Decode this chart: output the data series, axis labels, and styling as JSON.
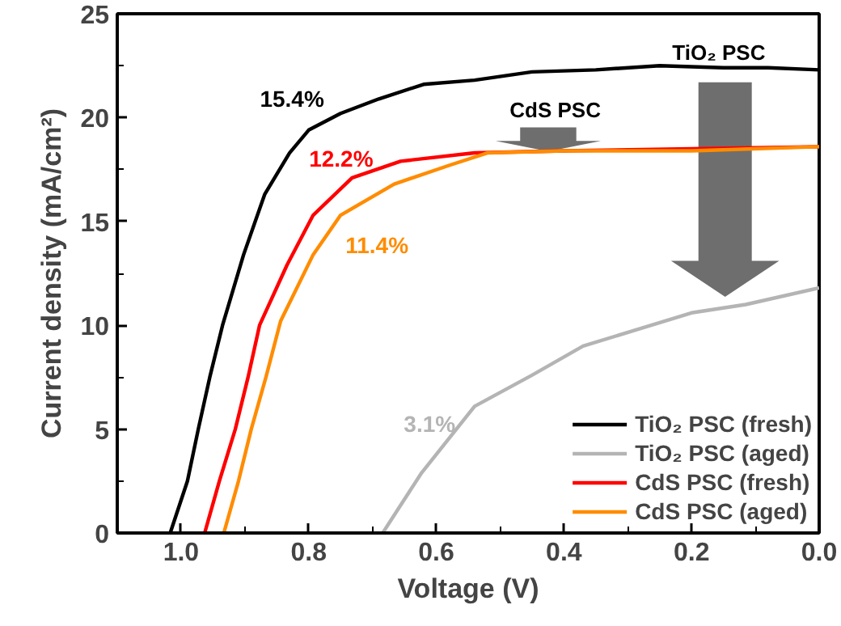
{
  "chart_data": {
    "type": "line",
    "xlabel": "Voltage (V)",
    "ylabel": "Current density (mA/cm²)",
    "xlim": [
      1.1,
      0.0
    ],
    "ylim": [
      0,
      25
    ],
    "xticks": [
      {
        "value": 1.0,
        "label": "1.0"
      },
      {
        "value": 0.8,
        "label": "0.8"
      },
      {
        "value": 0.6,
        "label": "0.6"
      },
      {
        "value": 0.4,
        "label": "0.4"
      },
      {
        "value": 0.2,
        "label": "0.2"
      },
      {
        "value": 0.0,
        "label": "0.0"
      },
      {
        "value": 0.9,
        "label": null
      },
      {
        "value": 0.7,
        "label": null
      },
      {
        "value": 0.5,
        "label": null
      },
      {
        "value": 0.3,
        "label": null
      },
      {
        "value": 0.1,
        "label": null
      }
    ],
    "yticks": [
      0,
      5,
      10,
      15,
      20,
      25,
      {
        "value": 2.5,
        "label": null
      },
      {
        "value": 7.5,
        "label": null
      },
      {
        "value": 12.5,
        "label": null
      },
      {
        "value": 17.5,
        "label": null
      },
      {
        "value": 22.5,
        "label": null
      }
    ],
    "grid": false,
    "legend": "bottom right",
    "line_style": "solid",
    "marker": "none",
    "series": [
      {
        "name": "TiO₂ PSC (fresh)",
        "color": "#000000",
        "x": [
          1.017,
          0.99,
          0.973,
          0.955,
          0.935,
          0.902,
          0.869,
          0.83,
          0.8,
          0.75,
          0.69,
          0.62,
          0.54,
          0.45,
          0.35,
          0.25,
          0.15,
          0.08,
          0.0
        ],
        "values": [
          0,
          2.5,
          5,
          7.5,
          10,
          13.4,
          16.3,
          18.3,
          19.4,
          20.2,
          20.9,
          21.6,
          21.8,
          22.2,
          22.3,
          22.5,
          22.4,
          22.4,
          22.3
        ]
      },
      {
        "name": "TiO₂ PSC (aged)",
        "color": "#b4b4b4",
        "x": [
          0.684,
          0.623,
          0.54,
          0.45,
          0.37,
          0.285,
          0.2,
          0.115,
          0.0
        ],
        "values": [
          0,
          2.9,
          6.1,
          7.6,
          9.0,
          9.8,
          10.6,
          11.0,
          11.8
        ]
      },
      {
        "name": "CdS PSC (fresh)",
        "color": "#ff0000",
        "x": [
          0.963,
          0.94,
          0.915,
          0.895,
          0.877,
          0.834,
          0.793,
          0.732,
          0.656,
          0.54,
          0.4,
          0.2,
          0.0
        ],
        "values": [
          0,
          2.5,
          5,
          7.5,
          10,
          12.9,
          15.3,
          17.1,
          17.9,
          18.3,
          18.4,
          18.5,
          18.6
        ]
      },
      {
        "name": "CdS PSC (aged)",
        "color": "#ff8c00",
        "x": [
          0.933,
          0.91,
          0.89,
          0.867,
          0.844,
          0.793,
          0.75,
          0.666,
          0.58,
          0.52,
          0.4,
          0.2,
          0.0
        ],
        "values": [
          0,
          2.5,
          5,
          7.5,
          10.2,
          13.4,
          15.3,
          16.8,
          17.7,
          18.3,
          18.4,
          18.4,
          18.6
        ]
      }
    ],
    "annotations": [
      "15.4%",
      "3.1%",
      "12.2%",
      "11.4%",
      "TiO₂ PSC",
      "CdS PSC"
    ]
  }
}
